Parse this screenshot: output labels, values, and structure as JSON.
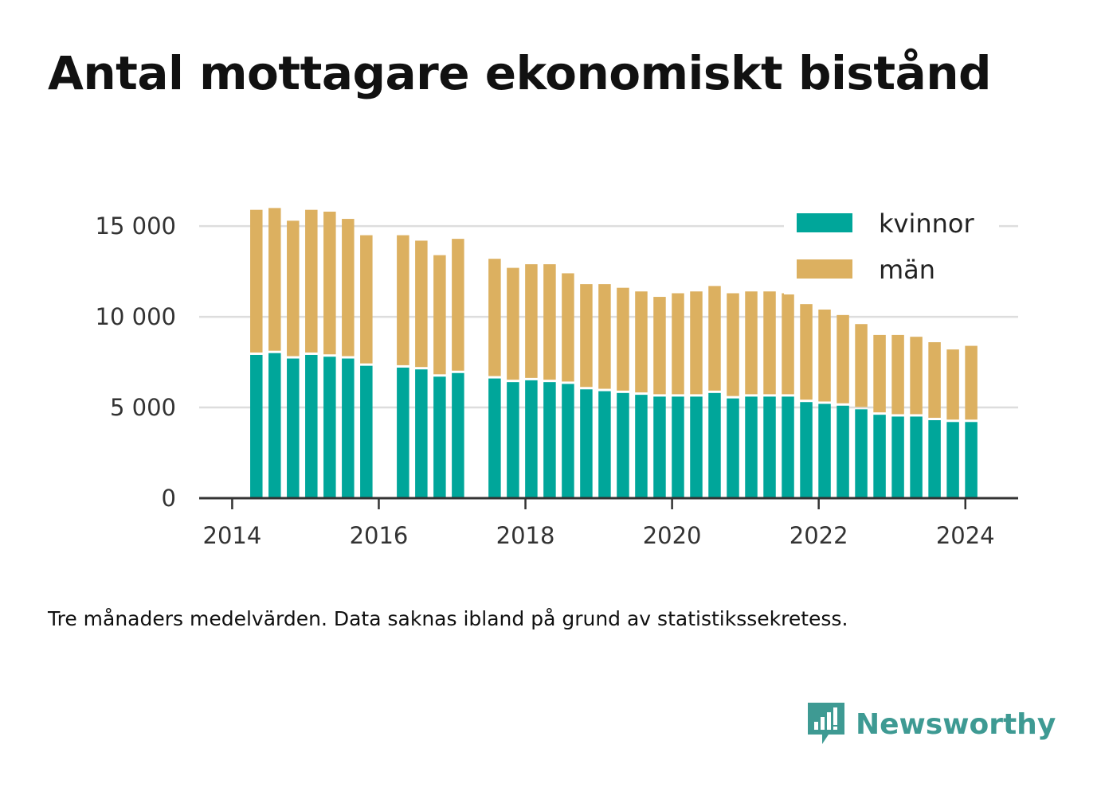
{
  "title": "Antal mottagare ekonomiskt bistånd",
  "note": "Tre månaders medelvärden. Data saknas ibland på grund av statistikssekretess.",
  "brand": {
    "name": "Newsworthy",
    "icon": "newsworthy-logo-icon"
  },
  "colors": {
    "kvinnor": "#00a69a",
    "man": "#dcb060",
    "grid": "#dddddd",
    "axis": "#333333"
  },
  "chart_data": {
    "type": "bar",
    "stacked": true,
    "title": "Antal mottagare ekonomiskt bistånd",
    "xlabel": "",
    "ylabel": "",
    "ylim": [
      0,
      16500
    ],
    "xlim": [
      2013.55,
      2024.72
    ],
    "grid": true,
    "legend_position": "top-right",
    "y_ticks": [
      0,
      5000,
      10000,
      15000
    ],
    "y_tick_labels": [
      "0",
      "5 000",
      "10 000",
      "15 000"
    ],
    "x_ticks": [
      2014,
      2016,
      2018,
      2020,
      2022,
      2024
    ],
    "x_tick_labels": [
      "2014",
      "2016",
      "2018",
      "2020",
      "2022",
      "2024"
    ],
    "x": [
      2014.33,
      2014.58,
      2014.83,
      2015.08,
      2015.33,
      2015.58,
      2015.83,
      2016.33,
      2016.58,
      2016.83,
      2017.08,
      2017.58,
      2017.83,
      2018.08,
      2018.33,
      2018.58,
      2018.83,
      2019.08,
      2019.33,
      2019.58,
      2019.83,
      2020.08,
      2020.33,
      2020.58,
      2020.83,
      2021.08,
      2021.33,
      2021.58,
      2021.83,
      2022.08,
      2022.33,
      2022.58,
      2022.83,
      2023.08,
      2023.33,
      2023.58,
      2023.83,
      2024.08
    ],
    "series": [
      {
        "name": "kvinnor",
        "color": "#00a69a",
        "values": [
          7900,
          8000,
          7700,
          7900,
          7800,
          7700,
          7300,
          7200,
          7100,
          6700,
          6900,
          6600,
          6400,
          6500,
          6400,
          6300,
          6000,
          5900,
          5800,
          5700,
          5600,
          5600,
          5600,
          5800,
          5500,
          5600,
          5600,
          5600,
          5300,
          5200,
          5100,
          4900,
          4600,
          4500,
          4500,
          4300,
          4200,
          4200
        ]
      },
      {
        "name": "män",
        "color": "#dcb060",
        "values": [
          8000,
          8000,
          7600,
          8000,
          8000,
          7700,
          7200,
          7300,
          7100,
          6700,
          7400,
          6600,
          6300,
          6400,
          6500,
          6100,
          5800,
          5900,
          5800,
          5700,
          5500,
          5700,
          5800,
          5900,
          5800,
          5800,
          5800,
          5700,
          5400,
          5200,
          5000,
          4700,
          4400,
          4500,
          4400,
          4300,
          4000,
          4200
        ]
      }
    ]
  }
}
